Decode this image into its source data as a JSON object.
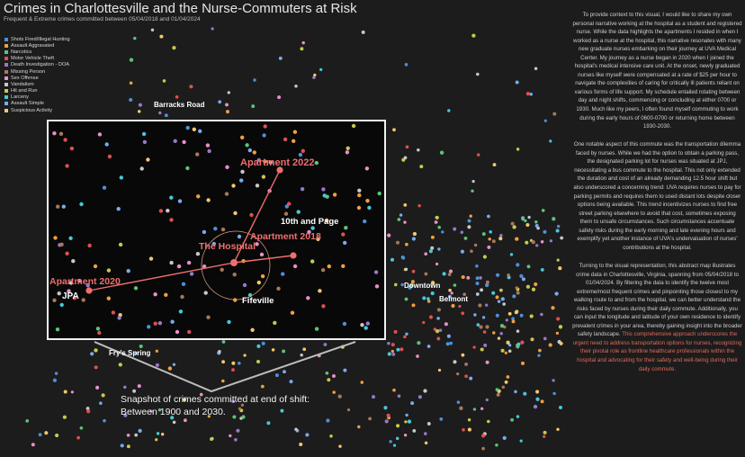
{
  "title": "Crimes in Charlottesville and the Nurse-Commuters at Risk",
  "subtitle": "Frequent & Extreme crimes committed between 05/04/2018 and 01/04/2024",
  "legend": [
    {
      "label": "Shots Fired/Illegal Hunting",
      "color": "#4f8fd8"
    },
    {
      "label": "Assault Aggravated",
      "color": "#f0a040"
    },
    {
      "label": "Narcotics",
      "color": "#5ec27a"
    },
    {
      "label": "Motor Vehicle Theft",
      "color": "#e05050"
    },
    {
      "label": "Death Investigation - DOA",
      "color": "#9a78c8"
    },
    {
      "label": "Missing Person",
      "color": "#a87858"
    },
    {
      "label": "Sex Offense",
      "color": "#e890c8"
    },
    {
      "label": "Vandalism",
      "color": "#c8c8c8"
    },
    {
      "label": "Hit and Run",
      "color": "#c8c850"
    },
    {
      "label": "Larceny",
      "color": "#48c8d8"
    },
    {
      "label": "Assault Simple",
      "color": "#78aaf0"
    },
    {
      "label": "Suspicious Activity",
      "color": "#f0c870"
    }
  ],
  "roads": {
    "barracks": "Barracks Road",
    "downtown": "Downtown",
    "belmont": "Belmont",
    "frys": "Fry's Spring"
  },
  "snapshot": {
    "apt2022": "Apartment 2022",
    "tenth": "10th and Page",
    "apt2018": "Apartment 2018",
    "hospital": "The Hospital",
    "apt2020": "Apartment 2020",
    "jpa": "JPA",
    "fifeville": "Fifeville"
  },
  "caption": {
    "line1": "Snapshot of crimes committed at end of shift:",
    "line2": "Between 1900 and 2030."
  },
  "narrative": {
    "p1": "To provide context to this visual, I would like to share my own personal narrative working at the hospital as a student and registered nurse. While the data highlights the apartments I resided in when I worked as a nurse at the hospital, this narrative resonates with many new graduate nurses embarking on their journey at UVA Medical Center. My journey as a nurse began in 2020 when I joined the hospital's medical intensive care unit. At the onset, newly graduated nurses like myself were compensated at a rate of $25 per hour to navigate the complexities of caring for critically ill patients reliant on various forms of life support. My schedule entailed rotating between day and night shifts, commencing or concluding at either 0700 or 1930. Much like my peers, I often found myself commuting to work during the early hours of 0600-0700 or returning home between 1930-2030.",
    "p2": "One notable aspect of this commute was the transportation dilemma faced by nurses. While we had the option to obtain a parking pass, the designated parking lot for nurses was situated at JPJ, necessitating a bus commute to the hospital. This not only extended the duration and cost of an already demanding 12.5 hour shift but also underscored a concerning trend: UVA requires nurses to pay for parking permits and requires them to used distant lots despite closer options being available. This trend incentivizes nurses to find free street parking elsewhere to avoid that cost, sometimes exposing them to unsafe circumstances. Such circumstances accentuate safety risks during the early morning and late evening hours and exemplify yet another instance of UVA's undervaluation of nurses' contributions at the hospital.",
    "p3": "Turning to the visual representation, this abstract map illustrates crime data in Charlottesville, Virginia, spanning from 05/04/2018 to 01/04/2024. By filtering the data to identify the twelve most extreme/most frequent crimes and pinpointing those closest to my walking route to and from the hospital, we can better understand the risks faced by nurses during their daily commute. Additionally, you can input the longitude and latitude of your own residence to identify prevalent crimes in your area, thereby gaining insight into the broader safety landscape.",
    "p3_highlight": "This comprehensive approach underscores the urgent need to address transportation options for nurses, recognizing their pivotal role as frontline healthcare professionals within the hospital and advocating for their safety and well-being during their daily commute."
  }
}
